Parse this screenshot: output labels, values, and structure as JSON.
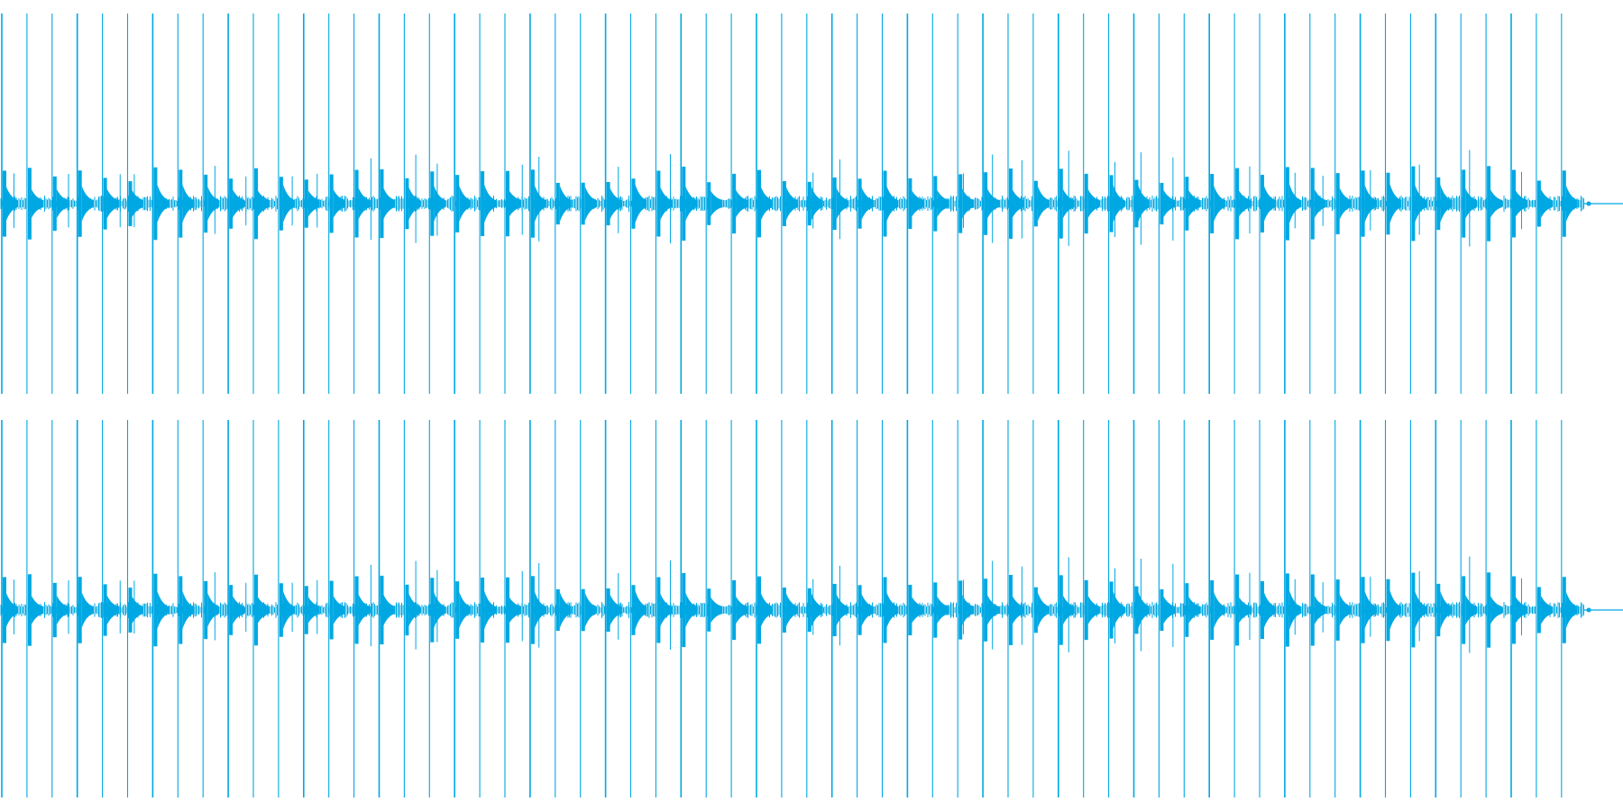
{
  "waveform": {
    "color": "#00a8e3",
    "channels": [
      {
        "name": ""
      },
      {
        "name": ""
      }
    ],
    "pulse_count": 64,
    "pulse_spacing_fraction": 0.0155,
    "tail_fraction": 0.013
  }
}
